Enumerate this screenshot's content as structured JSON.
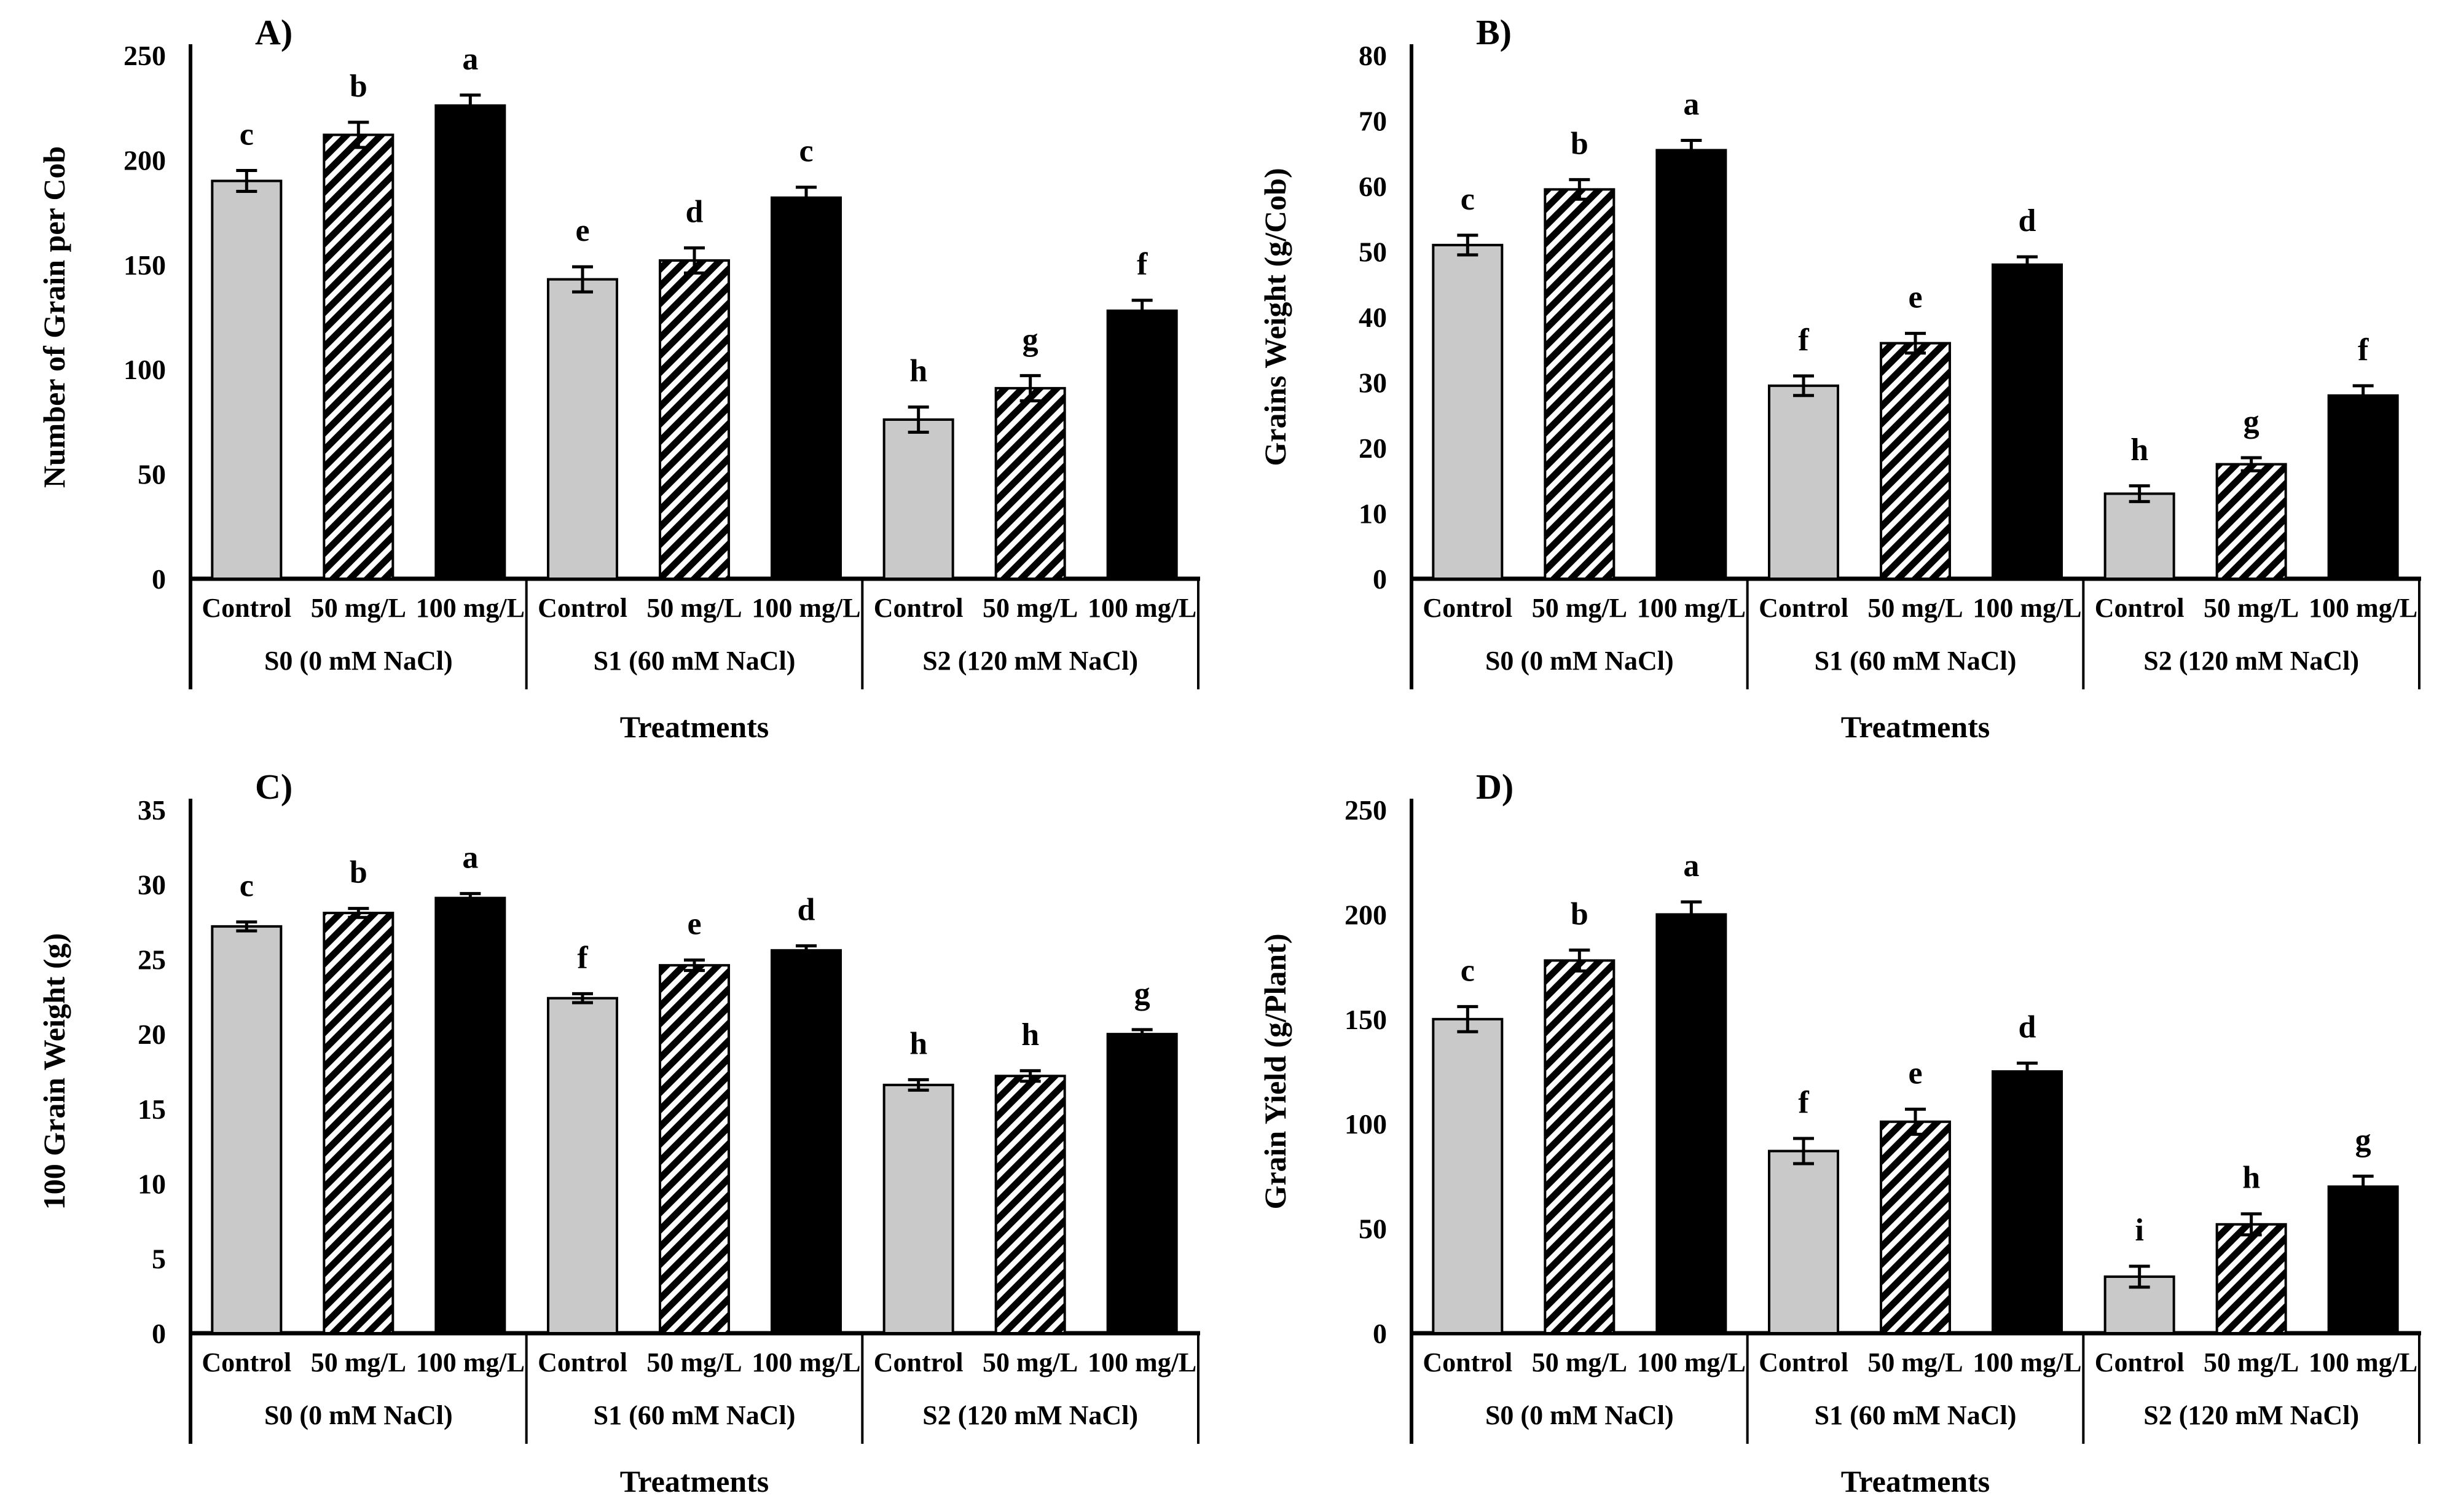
{
  "figure_background": "#ffffff",
  "styles": {
    "axis_color": "#000000",
    "bar_outline": "#000000",
    "control_fill": "#c9c9c9",
    "hatch_fill": "black diagonal stripes on white",
    "treatment100_fill": "#000000",
    "error_bar_color": "#000000"
  },
  "treatment_series": [
    "Control",
    "50 mg/L",
    "100 mg/L"
  ],
  "chart_data": [
    {
      "type": "bar",
      "panel_label": "A)",
      "ylabel": "Number of Grain per Cob",
      "xlabel": "Treatments",
      "ylim": [
        0,
        250
      ],
      "ystep": 50,
      "grid": false,
      "group_labels": [
        "S0 (0 mM NaCl)",
        "S1 (60 mM NaCl)",
        "S2 (120 mM NaCl)"
      ],
      "categories": [
        "Control",
        "50 mg/L",
        "100 mg/L"
      ],
      "values": [
        [
          190,
          212,
          226
        ],
        [
          143,
          152,
          182
        ],
        [
          76,
          91,
          128
        ]
      ],
      "errors": [
        [
          5,
          6,
          5
        ],
        [
          6,
          6,
          5
        ],
        [
          6,
          6,
          5
        ]
      ],
      "sig_letters": [
        [
          "c",
          "b",
          "a"
        ],
        [
          "e",
          "d",
          "c"
        ],
        [
          "h",
          "g",
          "f"
        ]
      ]
    },
    {
      "type": "bar",
      "panel_label": "B)",
      "ylabel": "Grains Weight (g/Cob)",
      "xlabel": "Treatments",
      "ylim": [
        0,
        80
      ],
      "ystep": 10,
      "grid": false,
      "group_labels": [
        "S0 (0 mM NaCl)",
        "S1 (60 mM NaCl)",
        "S2 (120 mM NaCl)"
      ],
      "categories": [
        "Control",
        "50 mg/L",
        "100 mg/L"
      ],
      "values": [
        [
          51,
          59.5,
          65.5
        ],
        [
          29.5,
          36,
          48
        ],
        [
          13,
          17.5,
          28
        ]
      ],
      "errors": [
        [
          1.5,
          1.5,
          1.5
        ],
        [
          1.5,
          1.5,
          1.2
        ],
        [
          1.2,
          1.0,
          1.5
        ]
      ],
      "sig_letters": [
        [
          "c",
          "b",
          "a"
        ],
        [
          "f",
          "e",
          "d"
        ],
        [
          "h",
          "g",
          "f"
        ]
      ]
    },
    {
      "type": "bar",
      "panel_label": "C)",
      "ylabel": "100 Grain Weight (g)",
      "xlabel": "Treatments",
      "ylim": [
        0,
        35
      ],
      "ystep": 5,
      "grid": false,
      "group_labels": [
        "S0 (0 mM NaCl)",
        "S1 (60 mM NaCl)",
        "S2 (120 mM NaCl)"
      ],
      "categories": [
        "Control",
        "50 mg/L",
        "100 mg/L"
      ],
      "values": [
        [
          27.2,
          28.1,
          29.1
        ],
        [
          22.4,
          24.6,
          25.6
        ],
        [
          16.6,
          17.2,
          20.0
        ]
      ],
      "errors": [
        [
          0.3,
          0.3,
          0.3
        ],
        [
          0.3,
          0.35,
          0.3
        ],
        [
          0.35,
          0.35,
          0.3
        ]
      ],
      "sig_letters": [
        [
          "c",
          "b",
          "a"
        ],
        [
          "f",
          "e",
          "d"
        ],
        [
          "h",
          "h",
          "g"
        ]
      ]
    },
    {
      "type": "bar",
      "panel_label": "D)",
      "ylabel": "Grain Yield (g/Plant)",
      "xlabel": "Treatments",
      "ylim": [
        0,
        250
      ],
      "ystep": 50,
      "grid": false,
      "group_labels": [
        "S0 (0 mM NaCl)",
        "S1 (60 mM NaCl)",
        "S2 (120 mM NaCl)"
      ],
      "categories": [
        "Control",
        "50 mg/L",
        "100 mg/L"
      ],
      "values": [
        [
          150,
          178,
          200
        ],
        [
          87,
          101,
          125
        ],
        [
          27,
          52,
          70
        ]
      ],
      "errors": [
        [
          6,
          5,
          6
        ],
        [
          6,
          6,
          4
        ],
        [
          5,
          5,
          5
        ]
      ],
      "sig_letters": [
        [
          "c",
          "b",
          "a"
        ],
        [
          "f",
          "e",
          "d"
        ],
        [
          "i",
          "h",
          "g"
        ]
      ]
    }
  ]
}
